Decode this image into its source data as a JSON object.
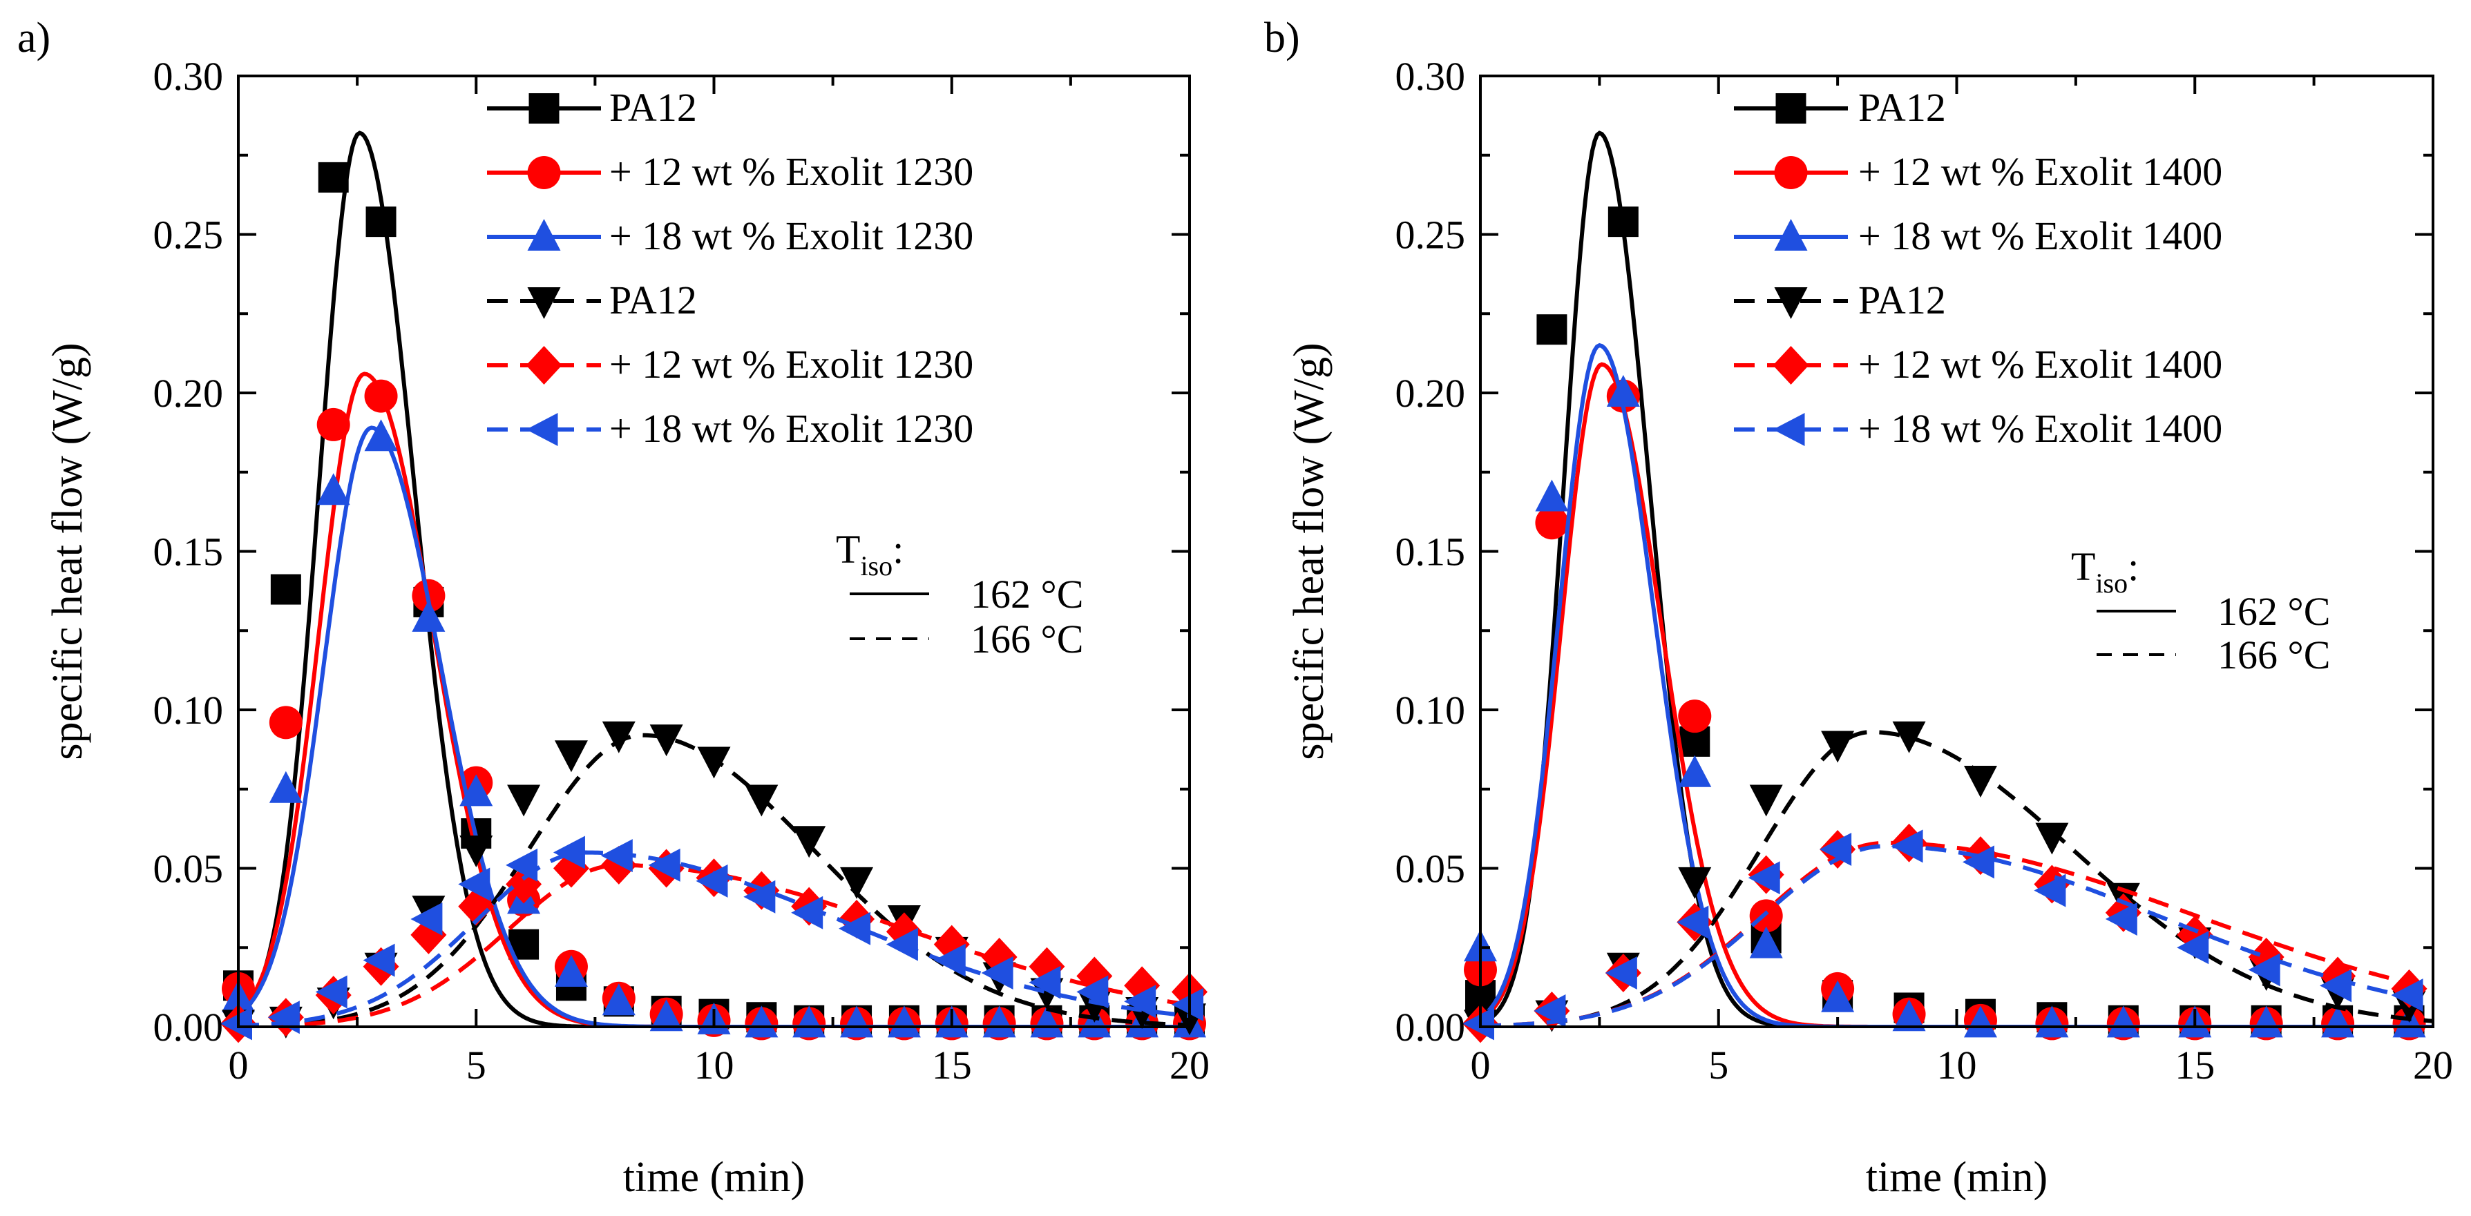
{
  "figure": {
    "panels": [
      "a)",
      "b)"
    ]
  },
  "chart_data": [
    {
      "type": "line",
      "panel_label": "a)",
      "xlabel": "time (min)",
      "ylabel": "specific heat flow (W/g)",
      "xlim": [
        0,
        20
      ],
      "ylim": [
        0,
        0.3
      ],
      "xticks": [
        0,
        5,
        10,
        15,
        20
      ],
      "xtick_labels": [
        "0",
        "5",
        "10",
        "15",
        "20"
      ],
      "yticks": [
        0,
        0.05,
        0.1,
        0.15,
        0.2,
        0.25,
        0.3
      ],
      "ytick_labels": [
        "0.00",
        "0.05",
        "0.10",
        "0.15",
        "0.20",
        "0.25",
        "0.30"
      ],
      "legend_position": "top-right",
      "tiso": {
        "title_main": "T",
        "title_sub": "iso",
        "title_suffix": ":",
        "solid_label": "162 °C",
        "dashed_label": "166 °C"
      },
      "series": [
        {
          "name": "PA12",
          "color": "#000000",
          "marker": "square",
          "dash": false,
          "curve": {
            "amp": 0.282,
            "peak": 2.55,
            "wl": 0.85,
            "wr": 1.15,
            "tail": 0
          },
          "markers": [
            [
              0,
              0.013
            ],
            [
              1,
              0.138
            ],
            [
              2,
              0.268
            ],
            [
              3,
              0.254
            ],
            [
              4,
              0.134
            ],
            [
              5,
              0.061
            ],
            [
              6,
              0.026
            ],
            [
              7,
              0.013
            ],
            [
              8,
              0.008
            ],
            [
              9,
              0.005
            ],
            [
              10,
              0.004
            ],
            [
              11,
              0.003
            ],
            [
              12,
              0.002
            ],
            [
              13,
              0.002
            ],
            [
              14,
              0.002
            ],
            [
              15,
              0.002
            ],
            [
              16,
              0.002
            ],
            [
              17,
              0.002
            ],
            [
              18,
              0.002
            ],
            [
              19,
              0.002
            ],
            [
              20,
              0.002
            ]
          ]
        },
        {
          "name": "+ 12 wt % Exolit 1230",
          "color": "#ff0000",
          "marker": "circle",
          "dash": false,
          "curve": {
            "amp": 0.206,
            "peak": 2.65,
            "wl": 0.95,
            "wr": 1.45,
            "tail": 0
          },
          "markers": [
            [
              0,
              0.012
            ],
            [
              1,
              0.096
            ],
            [
              2,
              0.19
            ],
            [
              3,
              0.199
            ],
            [
              4,
              0.136
            ],
            [
              5,
              0.077
            ],
            [
              6,
              0.04
            ],
            [
              7,
              0.019
            ],
            [
              8,
              0.009
            ],
            [
              9,
              0.004
            ],
            [
              10,
              0.002
            ],
            [
              11,
              0.001
            ],
            [
              12,
              0.001
            ],
            [
              13,
              0.001
            ],
            [
              14,
              0.001
            ],
            [
              15,
              0.001
            ],
            [
              16,
              0.001
            ],
            [
              17,
              0.001
            ],
            [
              18,
              0.001
            ],
            [
              19,
              0.001
            ],
            [
              20,
              0.001
            ]
          ]
        },
        {
          "name": "+ 18 wt % Exolit 1230",
          "color": "#1f4fe0",
          "marker": "triangle-up",
          "dash": false,
          "curve": {
            "amp": 0.189,
            "peak": 2.8,
            "wl": 1.0,
            "wr": 1.45,
            "tail": 0
          },
          "markers": [
            [
              0,
              0.009
            ],
            [
              1,
              0.075
            ],
            [
              2,
              0.169
            ],
            [
              3,
              0.186
            ],
            [
              4,
              0.129
            ],
            [
              5,
              0.074
            ],
            [
              6,
              0.04
            ],
            [
              7,
              0.017
            ],
            [
              8,
              0.008
            ],
            [
              9,
              0.003
            ],
            [
              10,
              0.002
            ],
            [
              11,
              0.001
            ],
            [
              12,
              0.001
            ],
            [
              13,
              0.001
            ],
            [
              14,
              0.001
            ],
            [
              15,
              0.001
            ],
            [
              16,
              0.001
            ],
            [
              17,
              0.001
            ],
            [
              18,
              0.001
            ],
            [
              19,
              0.001
            ],
            [
              20,
              0.001
            ]
          ]
        },
        {
          "name": "PA12",
          "color": "#000000",
          "marker": "triangle-down",
          "dash": true,
          "curve": {
            "amp": 0.092,
            "peak": 8.5,
            "wl": 2.4,
            "wr": 3.6,
            "tail": 0
          },
          "markers": [
            [
              0,
              0.001
            ],
            [
              1,
              0.002
            ],
            [
              2,
              0.008
            ],
            [
              3,
              0.019
            ],
            [
              4,
              0.037
            ],
            [
              5,
              0.056
            ],
            [
              6,
              0.072
            ],
            [
              7,
              0.086
            ],
            [
              8,
              0.092
            ],
            [
              9,
              0.091
            ],
            [
              10,
              0.084
            ],
            [
              11,
              0.072
            ],
            [
              12,
              0.059
            ],
            [
              13,
              0.046
            ],
            [
              14,
              0.034
            ],
            [
              15,
              0.024
            ],
            [
              16,
              0.016
            ],
            [
              17,
              0.011
            ],
            [
              18,
              0.007
            ],
            [
              19,
              0.005
            ],
            [
              20,
              0.003
            ]
          ]
        },
        {
          "name": "+ 12 wt % Exolit 1230",
          "color": "#ff0000",
          "marker": "diamond",
          "dash": true,
          "curve": {
            "amp": 0.051,
            "peak": 8.0,
            "wl": 2.3,
            "wr": 6.0,
            "tail": 0
          },
          "markers": [
            [
              0,
              0.001
            ],
            [
              1,
              0.003
            ],
            [
              2,
              0.01
            ],
            [
              3,
              0.019
            ],
            [
              4,
              0.029
            ],
            [
              5,
              0.038
            ],
            [
              6,
              0.045
            ],
            [
              7,
              0.05
            ],
            [
              8,
              0.051
            ],
            [
              9,
              0.05
            ],
            [
              10,
              0.047
            ],
            [
              11,
              0.043
            ],
            [
              12,
              0.038
            ],
            [
              13,
              0.034
            ],
            [
              14,
              0.03
            ],
            [
              15,
              0.026
            ],
            [
              16,
              0.022
            ],
            [
              17,
              0.019
            ],
            [
              18,
              0.016
            ],
            [
              19,
              0.013
            ],
            [
              20,
              0.011
            ]
          ]
        },
        {
          "name": "+ 18 wt % Exolit 1230",
          "color": "#1f4fe0",
          "marker": "triangle-left",
          "dash": true,
          "curve": {
            "amp": 0.055,
            "peak": 7.3,
            "wl": 2.3,
            "wr": 5.4,
            "tail": 0
          },
          "markers": [
            [
              0,
              0.001
            ],
            [
              1,
              0.003
            ],
            [
              2,
              0.011
            ],
            [
              3,
              0.021
            ],
            [
              4,
              0.034
            ],
            [
              5,
              0.045
            ],
            [
              6,
              0.051
            ],
            [
              7,
              0.055
            ],
            [
              8,
              0.054
            ],
            [
              9,
              0.051
            ],
            [
              10,
              0.046
            ],
            [
              11,
              0.041
            ],
            [
              12,
              0.036
            ],
            [
              13,
              0.031
            ],
            [
              14,
              0.026
            ],
            [
              15,
              0.021
            ],
            [
              16,
              0.017
            ],
            [
              17,
              0.014
            ],
            [
              18,
              0.011
            ],
            [
              19,
              0.008
            ],
            [
              20,
              0.007
            ]
          ]
        }
      ]
    },
    {
      "type": "line",
      "panel_label": "b)",
      "xlabel": "time (min)",
      "ylabel": "specific heat flow (W/g)",
      "xlim": [
        0,
        20
      ],
      "ylim": [
        0,
        0.3
      ],
      "xticks": [
        0,
        5,
        10,
        15,
        20
      ],
      "xtick_labels": [
        "0",
        "5",
        "10",
        "15",
        "20"
      ],
      "yticks": [
        0,
        0.05,
        0.1,
        0.15,
        0.2,
        0.25,
        0.3
      ],
      "ytick_labels": [
        "0.00",
        "0.05",
        "0.10",
        "0.15",
        "0.20",
        "0.25",
        "0.30"
      ],
      "legend_position": "top-right",
      "tiso": {
        "title_main": "T",
        "title_sub": "iso",
        "title_suffix": ":",
        "solid_label": "162 °C",
        "dashed_label": "166 °C"
      },
      "series": [
        {
          "name": "PA12",
          "color": "#000000",
          "marker": "square",
          "dash": false,
          "curve": {
            "amp": 0.282,
            "peak": 2.5,
            "wl": 0.75,
            "wr": 1.05,
            "tail": 0
          },
          "markers": [
            [
              0,
              0.01
            ],
            [
              1.5,
              0.22
            ],
            [
              3,
              0.254
            ],
            [
              4.5,
              0.09
            ],
            [
              6,
              0.028
            ],
            [
              7.5,
              0.01
            ],
            [
              9,
              0.006
            ],
            [
              10.5,
              0.004
            ],
            [
              12,
              0.003
            ],
            [
              13.5,
              0.002
            ],
            [
              15,
              0.002
            ],
            [
              16.5,
              0.002
            ],
            [
              18,
              0.002
            ],
            [
              19.5,
              0.002
            ]
          ]
        },
        {
          "name": "+ 12 wt % Exolit 1400",
          "color": "#ff0000",
          "marker": "circle",
          "dash": false,
          "curve": {
            "amp": 0.209,
            "peak": 2.55,
            "wl": 0.85,
            "wr": 1.25,
            "tail": 0
          },
          "markers": [
            [
              0,
              0.018
            ],
            [
              1.5,
              0.159
            ],
            [
              3,
              0.199
            ],
            [
              4.5,
              0.098
            ],
            [
              6,
              0.035
            ],
            [
              7.5,
              0.012
            ],
            [
              9,
              0.004
            ],
            [
              10.5,
              0.002
            ],
            [
              12,
              0.001
            ],
            [
              13.5,
              0.001
            ],
            [
              15,
              0.001
            ],
            [
              16.5,
              0.001
            ],
            [
              18,
              0.001
            ],
            [
              19.5,
              0.001
            ]
          ]
        },
        {
          "name": "+ 18 wt % Exolit 1400",
          "color": "#1f4fe0",
          "marker": "triangle-up",
          "dash": false,
          "curve": {
            "amp": 0.215,
            "peak": 2.5,
            "wl": 0.85,
            "wr": 1.15,
            "tail": 0
          },
          "markers": [
            [
              0,
              0.025
            ],
            [
              1.5,
              0.167
            ],
            [
              3,
              0.2
            ],
            [
              4.5,
              0.08
            ],
            [
              6,
              0.026
            ],
            [
              7.5,
              0.009
            ],
            [
              9,
              0.003
            ],
            [
              10.5,
              0.001
            ],
            [
              12,
              0.001
            ],
            [
              13.5,
              0.001
            ],
            [
              15,
              0.001
            ],
            [
              16.5,
              0.001
            ],
            [
              18,
              0.001
            ],
            [
              19.5,
              0.001
            ]
          ]
        },
        {
          "name": "PA12",
          "color": "#000000",
          "marker": "triangle-down",
          "dash": true,
          "curve": {
            "amp": 0.093,
            "peak": 8.2,
            "wl": 2.3,
            "wr": 4.2,
            "tail": 0
          },
          "markers": [
            [
              0,
              0.001
            ],
            [
              1.5,
              0.004
            ],
            [
              3,
              0.019
            ],
            [
              4.5,
              0.046
            ],
            [
              6,
              0.072
            ],
            [
              7.5,
              0.089
            ],
            [
              9,
              0.092
            ],
            [
              10.5,
              0.078
            ],
            [
              12,
              0.06
            ],
            [
              13.5,
              0.041
            ],
            [
              15,
              0.027
            ],
            [
              16.5,
              0.017
            ],
            [
              18,
              0.011
            ],
            [
              19.5,
              0.007
            ]
          ]
        },
        {
          "name": "+ 12 wt % Exolit 1400",
          "color": "#ff0000",
          "marker": "diamond",
          "dash": true,
          "curve": {
            "amp": 0.058,
            "peak": 8.5,
            "wl": 2.6,
            "wr": 6.5,
            "tail": 0
          },
          "markers": [
            [
              0,
              0.001
            ],
            [
              1.5,
              0.005
            ],
            [
              3,
              0.017
            ],
            [
              4.5,
              0.033
            ],
            [
              6,
              0.048
            ],
            [
              7.5,
              0.056
            ],
            [
              9,
              0.058
            ],
            [
              10.5,
              0.054
            ],
            [
              12,
              0.045
            ],
            [
              13.5,
              0.036
            ],
            [
              15,
              0.029
            ],
            [
              16.5,
              0.022
            ],
            [
              18,
              0.016
            ],
            [
              19.5,
              0.012
            ]
          ]
        },
        {
          "name": "+ 18 wt % Exolit 1400",
          "color": "#1f4fe0",
          "marker": "triangle-left",
          "dash": true,
          "curve": {
            "amp": 0.057,
            "peak": 8.5,
            "wl": 2.6,
            "wr": 5.8,
            "tail": 0
          },
          "markers": [
            [
              0,
              0.001
            ],
            [
              1.5,
              0.005
            ],
            [
              3,
              0.017
            ],
            [
              4.5,
              0.033
            ],
            [
              6,
              0.047
            ],
            [
              7.5,
              0.056
            ],
            [
              9,
              0.057
            ],
            [
              10.5,
              0.052
            ],
            [
              12,
              0.043
            ],
            [
              13.5,
              0.034
            ],
            [
              15,
              0.025
            ],
            [
              16.5,
              0.018
            ],
            [
              18,
              0.013
            ],
            [
              19.5,
              0.01
            ]
          ]
        }
      ]
    }
  ]
}
